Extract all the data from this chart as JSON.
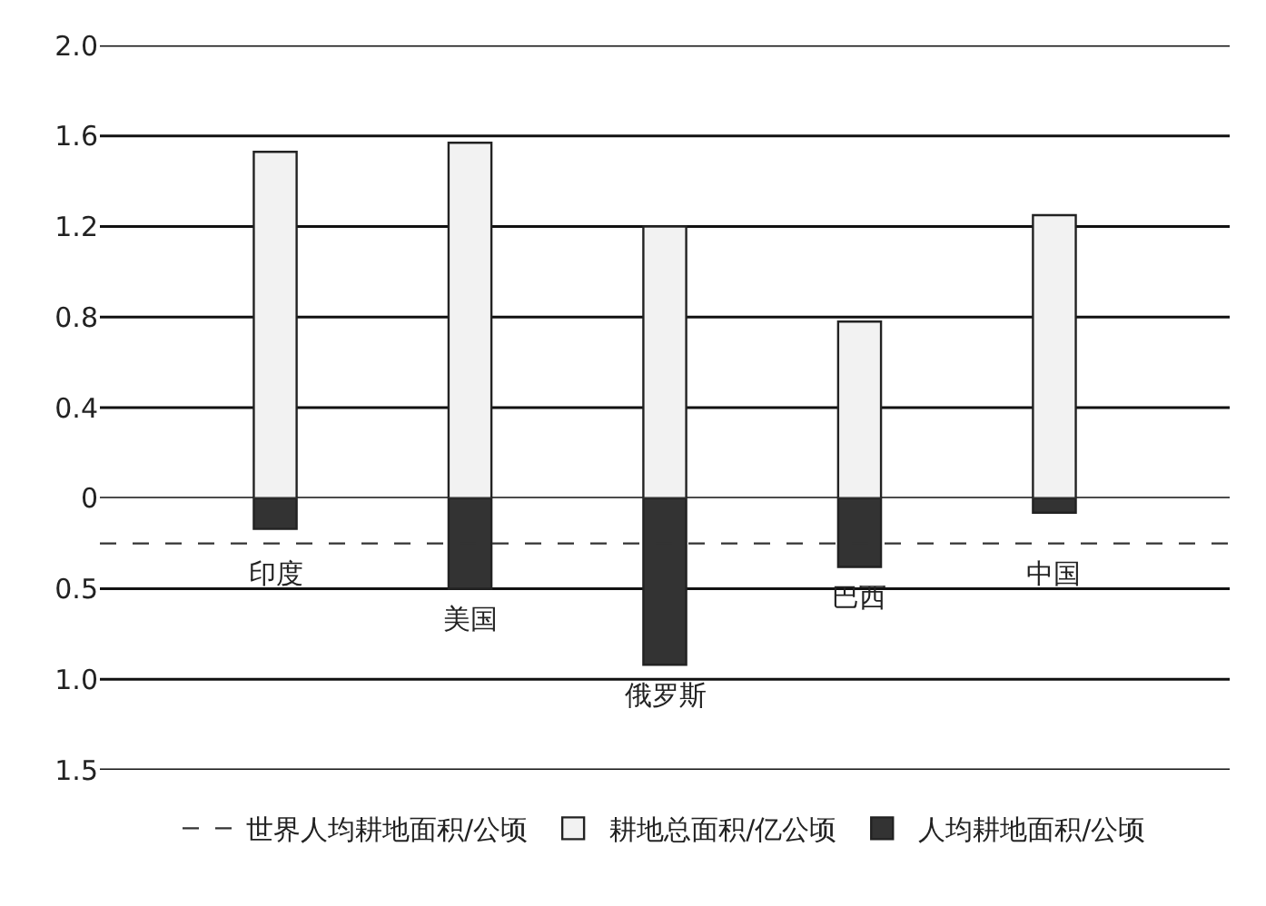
{
  "chart_data": [
    {
      "type": "bar",
      "categories": [
        null,
        null,
        null,
        null,
        null
      ],
      "series": [
        {
          "name": "耕地总面积/亿公顷",
          "color": "#f2f2f2",
          "values": [
            1.53,
            1.57,
            1.2,
            0.78,
            1.25
          ]
        }
      ],
      "ylim": [
        0,
        2.0
      ],
      "yticks": [
        0,
        0.4,
        0.8,
        1.2,
        1.6,
        {
          "value": 2.0,
          "label": "2.0"
        }
      ],
      "grid": "y",
      "tick_labels": "y",
      "legend": "bottom"
    },
    {
      "type": "bar",
      "categories": [
        "印度",
        "美国",
        "俄罗斯",
        "巴西",
        "中国"
      ],
      "series": [
        {
          "name": "人均耕地面积/公顷",
          "color": "#333333",
          "values": [
            0.17,
            0.5,
            0.92,
            0.38,
            0.08
          ]
        }
      ],
      "ylim": [
        1.5,
        0
      ],
      "yticks": [
        0.5,
        {
          "value": 1.0,
          "label": "1.0"
        },
        1.5
      ],
      "ref_lines": [
        {
          "axis": "y",
          "value": 0.25,
          "label": "世界人均耕地面积/公顷",
          "color": "#333333",
          "line_style": "dashed"
        }
      ],
      "grid": "y",
      "legend": "bottom"
    }
  ]
}
